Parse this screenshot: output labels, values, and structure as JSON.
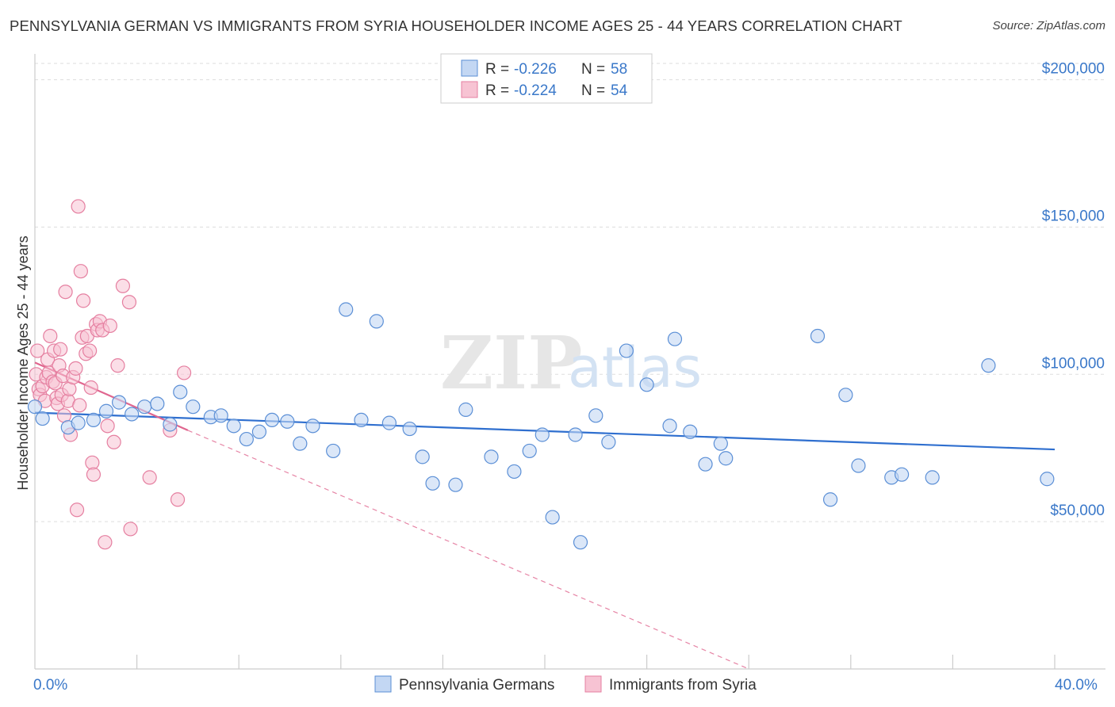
{
  "header": {
    "title": "PENNSYLVANIA GERMAN VS IMMIGRANTS FROM SYRIA HOUSEHOLDER INCOME AGES 25 - 44 YEARS CORRELATION CHART",
    "source": "Source: ZipAtlas.com"
  },
  "watermark": {
    "zip": "ZIP",
    "atlas": "atlas"
  },
  "legend": {
    "r_label": "R =",
    "n_label": "N =",
    "items": [
      {
        "r": "-0.226",
        "n": "58"
      },
      {
        "r": "-0.224",
        "n": "54"
      }
    ]
  },
  "colors": {
    "blue": "#5b8fd6",
    "blue_fill": "#c3d7f3",
    "blue_line": "#2f6fcf",
    "pink": "#e57fa0",
    "pink_fill": "#f7c3d3",
    "pink_line": "#e0668f",
    "grid": "#dddddd"
  },
  "chart_data": {
    "type": "scatter",
    "title": "PENNSYLVANIA GERMAN VS IMMIGRANTS FROM SYRIA HOUSEHOLDER INCOME AGES 25 - 44 YEARS CORRELATION CHART",
    "ylabel": "Householder Income Ages 25 - 44 years",
    "xlabel": "",
    "xlim": [
      0,
      40
    ],
    "ylim": [
      0,
      205000
    ],
    "x_tick_labels": [
      "0.0%",
      "40.0%"
    ],
    "y_ticks": [
      50000,
      100000,
      150000,
      200000
    ],
    "y_tick_labels": [
      "$50,000",
      "$100,000",
      "$150,000",
      "$200,000"
    ],
    "legend_position": "top-center",
    "series": [
      {
        "name": "Pennsylvania Germans",
        "r": -0.226,
        "n": 58,
        "trend": {
          "x": [
            0,
            40
          ],
          "y": [
            87000,
            74500
          ]
        },
        "points": [
          [
            0.0,
            89000
          ],
          [
            0.3,
            85000
          ],
          [
            1.3,
            82000
          ],
          [
            1.7,
            83500
          ],
          [
            2.3,
            84500
          ],
          [
            2.8,
            87500
          ],
          [
            3.3,
            90500
          ],
          [
            3.8,
            86500
          ],
          [
            4.3,
            89000
          ],
          [
            4.8,
            90000
          ],
          [
            5.3,
            83000
          ],
          [
            5.7,
            94000
          ],
          [
            6.2,
            89000
          ],
          [
            6.9,
            85500
          ],
          [
            7.3,
            86000
          ],
          [
            7.8,
            82500
          ],
          [
            8.3,
            78000
          ],
          [
            8.8,
            80500
          ],
          [
            9.3,
            84500
          ],
          [
            9.9,
            84000
          ],
          [
            10.4,
            76500
          ],
          [
            10.9,
            82500
          ],
          [
            11.7,
            74000
          ],
          [
            12.2,
            122000
          ],
          [
            12.8,
            84500
          ],
          [
            13.4,
            118000
          ],
          [
            13.9,
            83500
          ],
          [
            14.7,
            81500
          ],
          [
            15.2,
            72000
          ],
          [
            15.6,
            63000
          ],
          [
            16.5,
            62500
          ],
          [
            16.9,
            88000
          ],
          [
            17.9,
            72000
          ],
          [
            18.8,
            67000
          ],
          [
            19.4,
            74000
          ],
          [
            19.9,
            79500
          ],
          [
            20.3,
            51500
          ],
          [
            21.2,
            79500
          ],
          [
            21.4,
            43000
          ],
          [
            22.0,
            86000
          ],
          [
            22.5,
            77000
          ],
          [
            23.2,
            108000
          ],
          [
            24.0,
            96500
          ],
          [
            24.9,
            82500
          ],
          [
            25.1,
            112000
          ],
          [
            25.7,
            80500
          ],
          [
            26.3,
            69500
          ],
          [
            26.9,
            76500
          ],
          [
            27.1,
            71500
          ],
          [
            30.7,
            113000
          ],
          [
            31.2,
            57500
          ],
          [
            31.8,
            93000
          ],
          [
            32.3,
            69000
          ],
          [
            33.6,
            65000
          ],
          [
            34.0,
            66000
          ],
          [
            35.2,
            65000
          ],
          [
            37.4,
            103000
          ],
          [
            39.7,
            64500
          ]
        ]
      },
      {
        "name": "Immigrants from Syria",
        "r": -0.224,
        "n": 54,
        "trend": {
          "x": [
            0,
            6.0
          ],
          "y": [
            104000,
            81000
          ]
        },
        "trend_ext": {
          "x": [
            6.0,
            28.0
          ],
          "y": [
            81000,
            0
          ]
        },
        "points": [
          [
            0.05,
            100000
          ],
          [
            0.1,
            108000
          ],
          [
            0.15,
            95000
          ],
          [
            0.2,
            93000
          ],
          [
            0.3,
            96000
          ],
          [
            0.4,
            91000
          ],
          [
            0.45,
            99000
          ],
          [
            0.5,
            105000
          ],
          [
            0.55,
            100500
          ],
          [
            0.6,
            113000
          ],
          [
            0.7,
            97500
          ],
          [
            0.75,
            108000
          ],
          [
            0.8,
            97000
          ],
          [
            0.85,
            92000
          ],
          [
            0.9,
            90000
          ],
          [
            0.95,
            103000
          ],
          [
            1.0,
            108500
          ],
          [
            1.05,
            93000
          ],
          [
            1.1,
            99500
          ],
          [
            1.15,
            86000
          ],
          [
            1.2,
            128000
          ],
          [
            1.3,
            91000
          ],
          [
            1.35,
            95000
          ],
          [
            1.4,
            79500
          ],
          [
            1.5,
            99000
          ],
          [
            1.6,
            102000
          ],
          [
            1.65,
            54000
          ],
          [
            1.7,
            157000
          ],
          [
            1.75,
            89500
          ],
          [
            1.8,
            135000
          ],
          [
            1.85,
            112500
          ],
          [
            1.9,
            125000
          ],
          [
            2.0,
            107000
          ],
          [
            2.05,
            113000
          ],
          [
            2.15,
            108000
          ],
          [
            2.2,
            95500
          ],
          [
            2.25,
            70000
          ],
          [
            2.3,
            66000
          ],
          [
            2.4,
            117000
          ],
          [
            2.45,
            115000
          ],
          [
            2.55,
            118000
          ],
          [
            2.65,
            115000
          ],
          [
            2.75,
            43000
          ],
          [
            2.85,
            82500
          ],
          [
            2.95,
            116500
          ],
          [
            3.1,
            77000
          ],
          [
            3.25,
            103000
          ],
          [
            3.45,
            130000
          ],
          [
            3.7,
            124500
          ],
          [
            3.75,
            47500
          ],
          [
            4.5,
            65000
          ],
          [
            5.3,
            81000
          ],
          [
            5.6,
            57500
          ],
          [
            5.85,
            100500
          ]
        ]
      }
    ]
  },
  "bottom_legend": {
    "items": [
      {
        "label": "Pennsylvania Germans"
      },
      {
        "label": "Immigrants from Syria"
      }
    ]
  }
}
